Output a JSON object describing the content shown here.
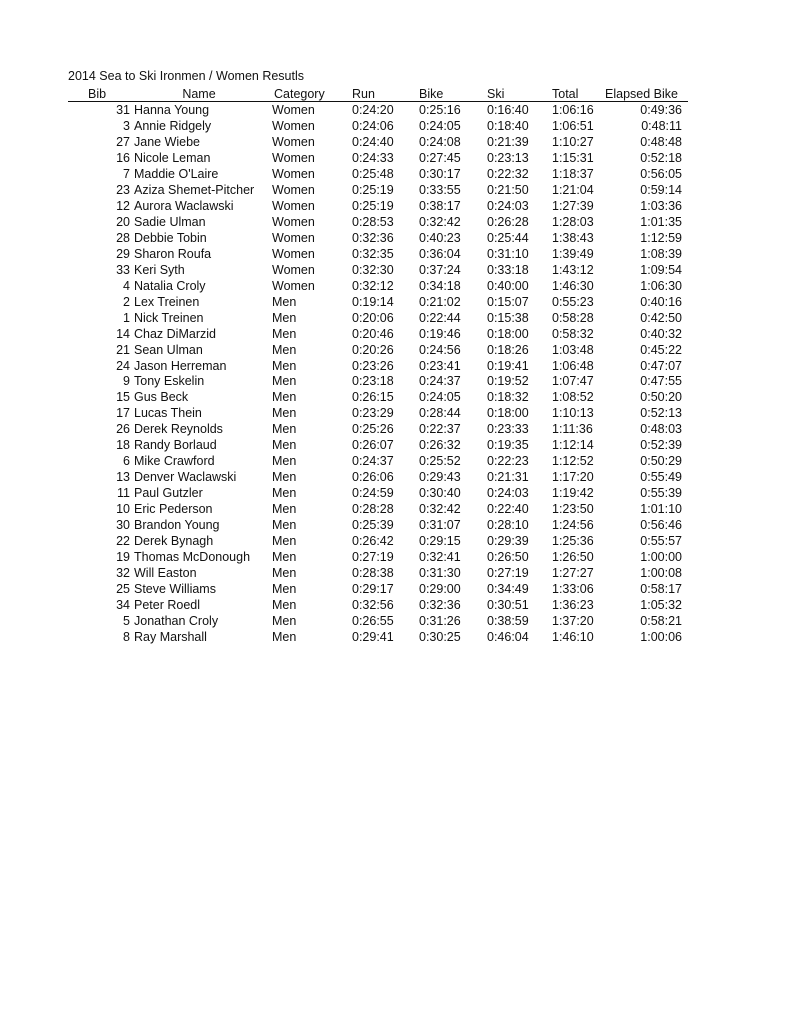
{
  "title": "2014 Sea to Ski Ironmen / Women Resutls",
  "headers": {
    "bib": "Bib",
    "name": "Name",
    "category": "Category",
    "run": "Run",
    "bike": "Bike",
    "ski": "Ski",
    "total": "Total",
    "elapsed_bike": "Elapsed Bike"
  },
  "rows": [
    [
      "31",
      "Hanna Young",
      "Women",
      "0:24:20",
      "0:25:16",
      "0:16:40",
      "1:06:16",
      "0:49:36"
    ],
    [
      "3",
      "Annie Ridgely",
      "Women",
      "0:24:06",
      "0:24:05",
      "0:18:40",
      "1:06:51",
      "0:48:11"
    ],
    [
      "27",
      "Jane Wiebe",
      "Women",
      "0:24:40",
      "0:24:08",
      "0:21:39",
      "1:10:27",
      "0:48:48"
    ],
    [
      "16",
      "Nicole Leman",
      "Women",
      "0:24:33",
      "0:27:45",
      "0:23:13",
      "1:15:31",
      "0:52:18"
    ],
    [
      "7",
      "Maddie O'Laire",
      "Women",
      "0:25:48",
      "0:30:17",
      "0:22:32",
      "1:18:37",
      "0:56:05"
    ],
    [
      "23",
      "Aziza Shemet-Pitcher",
      "Women",
      "0:25:19",
      "0:33:55",
      "0:21:50",
      "1:21:04",
      "0:59:14"
    ],
    [
      "12",
      "Aurora Waclawski",
      "Women",
      "0:25:19",
      "0:38:17",
      "0:24:03",
      "1:27:39",
      "1:03:36"
    ],
    [
      "20",
      "Sadie Ulman",
      "Women",
      "0:28:53",
      "0:32:42",
      "0:26:28",
      "1:28:03",
      "1:01:35"
    ],
    [
      "28",
      "Debbie Tobin",
      "Women",
      "0:32:36",
      "0:40:23",
      "0:25:44",
      "1:38:43",
      "1:12:59"
    ],
    [
      "29",
      "Sharon Roufa",
      "Women",
      "0:32:35",
      "0:36:04",
      "0:31:10",
      "1:39:49",
      "1:08:39"
    ],
    [
      "33",
      "Keri Syth",
      "Women",
      "0:32:30",
      "0:37:24",
      "0:33:18",
      "1:43:12",
      "1:09:54"
    ],
    [
      "4",
      "Natalia Croly",
      "Women",
      "0:32:12",
      "0:34:18",
      "0:40:00",
      "1:46:30",
      "1:06:30"
    ],
    [
      "2",
      "Lex Treinen",
      "Men",
      "0:19:14",
      "0:21:02",
      "0:15:07",
      "0:55:23",
      "0:40:16"
    ],
    [
      "1",
      "Nick Treinen",
      "Men",
      "0:20:06",
      "0:22:44",
      "0:15:38",
      "0:58:28",
      "0:42:50"
    ],
    [
      "14",
      "Chaz DiMarzid",
      "Men",
      "0:20:46",
      "0:19:46",
      "0:18:00",
      "0:58:32",
      "0:40:32"
    ],
    [
      "21",
      "Sean Ulman",
      "Men",
      "0:20:26",
      "0:24:56",
      "0:18:26",
      "1:03:48",
      "0:45:22"
    ],
    [
      "24",
      "Jason Herreman",
      "Men",
      "0:23:26",
      "0:23:41",
      "0:19:41",
      "1:06:48",
      "0:47:07"
    ],
    [
      "9",
      "Tony Eskelin",
      "Men",
      "0:23:18",
      "0:24:37",
      "0:19:52",
      "1:07:47",
      "0:47:55"
    ],
    [
      "15",
      "Gus Beck",
      "Men",
      "0:26:15",
      "0:24:05",
      "0:18:32",
      "1:08:52",
      "0:50:20"
    ],
    [
      "17",
      "Lucas Thein",
      "Men",
      "0:23:29",
      "0:28:44",
      "0:18:00",
      "1:10:13",
      "0:52:13"
    ],
    [
      "26",
      "Derek Reynolds",
      "Men",
      "0:25:26",
      "0:22:37",
      "0:23:33",
      "1:11:36",
      "0:48:03"
    ],
    [
      "18",
      "Randy Borlaud",
      "Men",
      "0:26:07",
      "0:26:32",
      "0:19:35",
      "1:12:14",
      "0:52:39"
    ],
    [
      "6",
      "Mike Crawford",
      "Men",
      "0:24:37",
      "0:25:52",
      "0:22:23",
      "1:12:52",
      "0:50:29"
    ],
    [
      "13",
      "Denver Waclawski",
      "Men",
      "0:26:06",
      "0:29:43",
      "0:21:31",
      "1:17:20",
      "0:55:49"
    ],
    [
      "11",
      "Paul Gutzler",
      "Men",
      "0:24:59",
      "0:30:40",
      "0:24:03",
      "1:19:42",
      "0:55:39"
    ],
    [
      "10",
      "Eric Pederson",
      "Men",
      "0:28:28",
      "0:32:42",
      "0:22:40",
      "1:23:50",
      "1:01:10"
    ],
    [
      "30",
      "Brandon Young",
      "Men",
      "0:25:39",
      "0:31:07",
      "0:28:10",
      "1:24:56",
      "0:56:46"
    ],
    [
      "22",
      "Derek Bynagh",
      "Men",
      "0:26:42",
      "0:29:15",
      "0:29:39",
      "1:25:36",
      "0:55:57"
    ],
    [
      "19",
      "Thomas McDonough",
      "Men",
      "0:27:19",
      "0:32:41",
      "0:26:50",
      "1:26:50",
      "1:00:00"
    ],
    [
      "32",
      "Will Easton",
      "Men",
      "0:28:38",
      "0:31:30",
      "0:27:19",
      "1:27:27",
      "1:00:08"
    ],
    [
      "25",
      "Steve Williams",
      "Men",
      "0:29:17",
      "0:29:00",
      "0:34:49",
      "1:33:06",
      "0:58:17"
    ],
    [
      "34",
      "Peter Roedl",
      "Men",
      "0:32:56",
      "0:32:36",
      "0:30:51",
      "1:36:23",
      "1:05:32"
    ],
    [
      "5",
      "Jonathan Croly",
      "Men",
      "0:26:55",
      "0:31:26",
      "0:38:59",
      "1:37:20",
      "0:58:21"
    ],
    [
      "8",
      "Ray Marshall",
      "Men",
      "0:29:41",
      "0:30:25",
      "0:46:04",
      "1:46:10",
      "1:00:06"
    ]
  ]
}
